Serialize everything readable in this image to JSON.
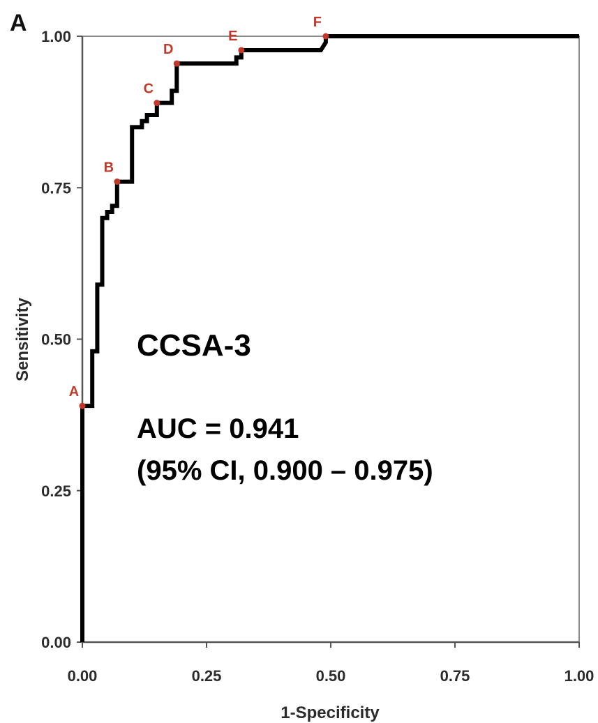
{
  "chart_data": {
    "type": "line",
    "panel_label": "A",
    "xlabel": "1-Specificity",
    "ylabel": "Sensitivity",
    "xlim": [
      0,
      1
    ],
    "ylim": [
      0,
      1
    ],
    "x_ticks": [
      "0.00",
      "0.25",
      "0.50",
      "0.75",
      "1.00"
    ],
    "y_ticks": [
      "0.00",
      "0.25",
      "0.50",
      "0.75",
      "1.00"
    ],
    "grid": false,
    "series": [
      {
        "color": "#000000",
        "x": [
          0,
          0,
          0.02,
          0.02,
          0.03,
          0.03,
          0.04,
          0.04,
          0.05,
          0.05,
          0.06,
          0.06,
          0.07,
          0.07,
          0.09,
          0.09,
          0.1,
          0.1,
          0.12,
          0.12,
          0.13,
          0.13,
          0.15,
          0.15,
          0.17,
          0.17,
          0.18,
          0.18,
          0.19,
          0.19,
          0.26,
          0.26,
          0.31,
          0.31,
          0.32,
          0.32,
          0.48,
          0.49,
          0.49,
          1.0
        ],
        "y": [
          0,
          0.39,
          0.39,
          0.48,
          0.48,
          0.59,
          0.59,
          0.7,
          0.7,
          0.71,
          0.71,
          0.72,
          0.72,
          0.76,
          0.76,
          0.76,
          0.76,
          0.85,
          0.85,
          0.86,
          0.86,
          0.87,
          0.87,
          0.89,
          0.89,
          0.89,
          0.89,
          0.91,
          0.91,
          0.955,
          0.955,
          0.955,
          0.955,
          0.965,
          0.965,
          0.977,
          0.977,
          0.99,
          1.0,
          1.0
        ]
      }
    ],
    "points": [
      {
        "label": "A",
        "x": 0.0,
        "y": 0.39
      },
      {
        "label": "B",
        "x": 0.07,
        "y": 0.76
      },
      {
        "label": "C",
        "x": 0.15,
        "y": 0.89
      },
      {
        "label": "D",
        "x": 0.19,
        "y": 0.955
      },
      {
        "label": "E",
        "x": 0.32,
        "y": 0.977
      },
      {
        "label": "F",
        "x": 0.49,
        "y": 1.0
      }
    ],
    "point_color": "#c0392b",
    "annotations": {
      "title": "CCSA-3",
      "auc": "AUC = 0.941",
      "ci": "(95% CI, 0.900 – 0.975)"
    }
  }
}
